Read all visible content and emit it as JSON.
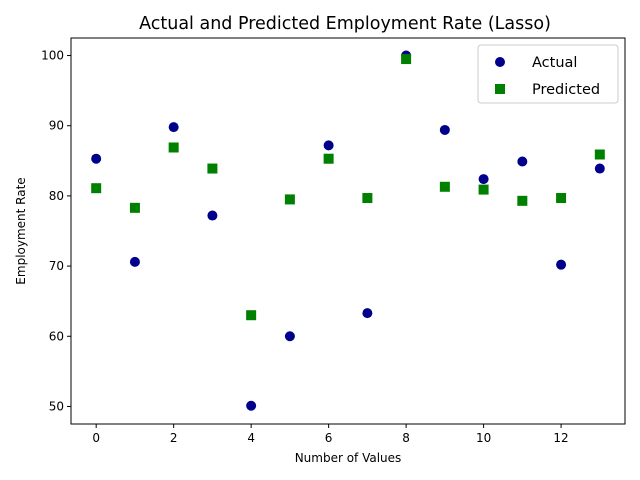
{
  "chart_data": {
    "type": "scatter",
    "title": "Actual and Predicted Employment Rate (Lasso)",
    "xlabel": "Number of Values",
    "ylabel": "Employment Rate",
    "xlim": [
      -0.65,
      13.65
    ],
    "ylim": [
      47.5,
      102.5
    ],
    "xticks": [
      0,
      2,
      4,
      6,
      8,
      10,
      12
    ],
    "yticks": [
      50,
      60,
      70,
      80,
      90,
      100
    ],
    "grid": false,
    "legend_position": "top-right",
    "series": [
      {
        "name": "Actual",
        "marker": "circle",
        "color": "#00008b",
        "x": [
          0,
          1,
          2,
          3,
          4,
          5,
          6,
          7,
          8,
          9,
          10,
          11,
          12,
          13
        ],
        "y": [
          85.3,
          70.6,
          89.8,
          77.2,
          50.1,
          60.0,
          87.2,
          63.3,
          100.0,
          89.4,
          82.4,
          84.9,
          70.2,
          83.9
        ]
      },
      {
        "name": "Predicted",
        "marker": "square",
        "color": "#008000",
        "x": [
          0,
          1,
          2,
          3,
          4,
          5,
          6,
          7,
          8,
          9,
          10,
          11,
          12,
          13
        ],
        "y": [
          81.1,
          78.3,
          86.9,
          83.9,
          63.0,
          79.5,
          85.3,
          79.7,
          99.5,
          81.3,
          80.9,
          79.3,
          79.7,
          85.9
        ]
      }
    ]
  }
}
